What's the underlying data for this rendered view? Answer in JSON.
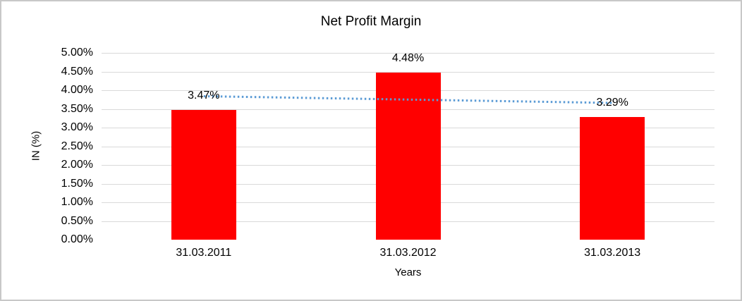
{
  "chart_data": {
    "type": "bar",
    "title": "Net Profit Margin",
    "xlabel": "Years",
    "ylabel": "IN (%)",
    "categories": [
      "31.03.2011",
      "31.03.2012",
      "31.03.2013"
    ],
    "values": [
      3.47,
      4.48,
      3.29
    ],
    "data_labels": [
      "3.47%",
      "4.48%",
      "3.29%"
    ],
    "ylim": [
      0,
      5
    ],
    "ytick_step": 0.5,
    "ytick_labels": [
      "0.00%",
      "0.50%",
      "1.00%",
      "1.50%",
      "2.00%",
      "2.50%",
      "3.00%",
      "3.50%",
      "4.00%",
      "4.50%",
      "5.00%"
    ],
    "grid": true,
    "legend": "none",
    "bar_color": "#ff0000",
    "trendline": {
      "type": "linear",
      "style": "dotted",
      "color": "#5b9bd5",
      "start_value": 3.84,
      "end_value": 3.66
    },
    "colors": {
      "gridline": "#d9d9d9",
      "axis_line": "#bfbfbf",
      "text": "#000000",
      "frame_border": "#c8c8c8",
      "background": "#ffffff"
    }
  }
}
